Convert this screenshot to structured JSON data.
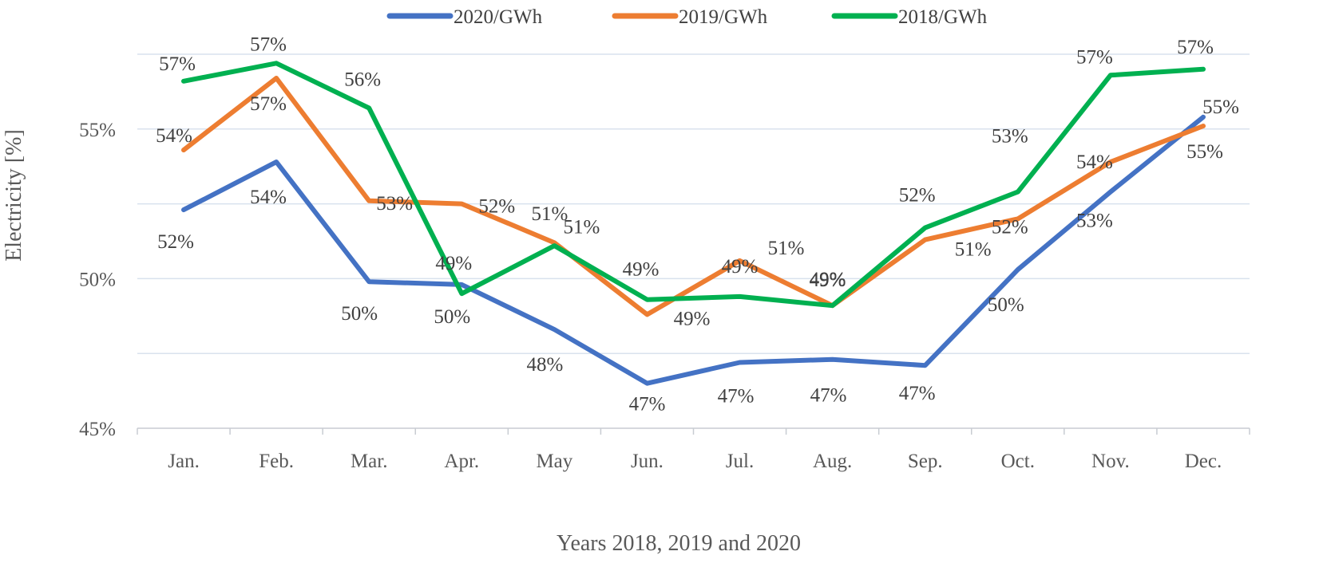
{
  "chart_data": {
    "type": "line",
    "title": "",
    "xlabel": "Years 2018, 2019 and 2020",
    "ylabel": "Electricity [%]",
    "categories": [
      "Jan.",
      "Feb.",
      "Mar.",
      "Apr.",
      "May",
      "Jun.",
      "Jul.",
      "Aug.",
      "Sep.",
      "Oct.",
      "Nov.",
      "Dec."
    ],
    "ylim": [
      45,
      57.5
    ],
    "yticks": [
      45,
      50,
      55
    ],
    "ytick_labels": [
      "45%",
      "50%",
      "55%"
    ],
    "grid": true,
    "legend_position": "top",
    "series": [
      {
        "name": "2020/GWh",
        "color": "#4472c4",
        "values": [
          52.3,
          53.9,
          49.9,
          49.8,
          48.3,
          46.5,
          47.2,
          47.3,
          47.1,
          50.3,
          52.9,
          55.4
        ],
        "labels": [
          "52%",
          "54%",
          "50%",
          "50%",
          "48%",
          "47%",
          "47%",
          "47%",
          "47%",
          "50%",
          "53%",
          "55%"
        ]
      },
      {
        "name": "2019/GWh",
        "color": "#ed7d31",
        "values": [
          54.3,
          56.7,
          52.6,
          52.5,
          51.2,
          48.8,
          50.6,
          49.1,
          51.3,
          52.0,
          53.9,
          55.1
        ],
        "labels": [
          "54%",
          "57%",
          "53%",
          "52%",
          "51%",
          "49%",
          "51%",
          "49%",
          "51%",
          "52%",
          "54%",
          "55%"
        ]
      },
      {
        "name": "2018/GWh",
        "color": "#00b050",
        "values": [
          56.6,
          57.2,
          55.7,
          49.5,
          51.1,
          49.3,
          49.4,
          49.1,
          51.7,
          52.9,
          56.8,
          57.0
        ],
        "labels": [
          "57%",
          "57%",
          "56%",
          "49%",
          "51%",
          "49%",
          "49%",
          "49%",
          "52%",
          "53%",
          "57%",
          "57%"
        ]
      }
    ]
  }
}
